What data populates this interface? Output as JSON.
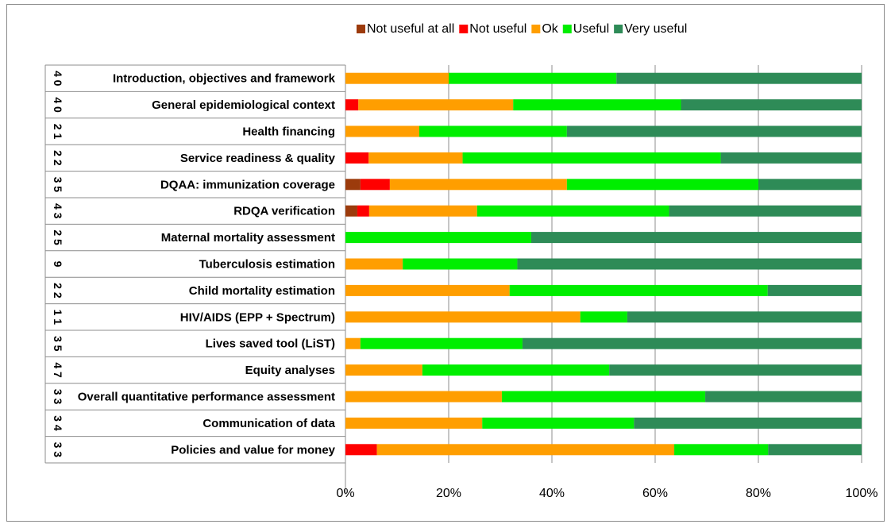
{
  "chart_data": {
    "type": "bar",
    "orientation": "horizontal",
    "stacked": true,
    "percent": true,
    "legend_position": "top",
    "grid": true,
    "xlim": [
      0,
      100
    ],
    "x_ticks": [
      "0%",
      "20%",
      "40%",
      "60%",
      "80%",
      "100%"
    ],
    "categories": [
      "Introduction, objectives and framework",
      "General epidemiological context",
      "Health financing",
      "Service readiness & quality",
      "DQAA: immunization coverage",
      "RDQA verification",
      "Maternal mortality assessment",
      "Tuberculosis estimation",
      "Child mortality estimation",
      "HIV/AIDS (EPP + Spectrum)",
      "Lives saved tool (LiST)",
      "Equity analyses",
      "Overall quantitative performance assessment",
      "Communication of data",
      "Policies and value for money"
    ],
    "counts": [
      "40",
      "40",
      "21",
      "22",
      "35",
      "43",
      "25",
      "9",
      "22",
      "11",
      "35",
      "47",
      "33",
      "34",
      "33"
    ],
    "series": [
      {
        "name": "Not useful at all",
        "color": "#9c3b0c",
        "values": [
          0,
          0,
          0,
          0,
          2.9,
          2.3,
          0,
          0,
          0,
          0,
          0,
          0,
          0,
          0,
          0
        ]
      },
      {
        "name": "Not useful",
        "color": "#ff0000",
        "values": [
          0,
          2.5,
          0,
          4.5,
          5.7,
          2.3,
          0,
          0,
          0,
          0,
          0,
          0,
          0,
          0,
          6.1
        ]
      },
      {
        "name": "Ok",
        "color": "#ff9e00",
        "values": [
          20.0,
          30.0,
          14.3,
          18.2,
          34.3,
          20.9,
          0,
          11.1,
          31.8,
          45.5,
          2.9,
          14.9,
          30.3,
          26.5,
          57.6
        ]
      },
      {
        "name": "Useful",
        "color": "#00ee00",
        "values": [
          32.5,
          32.5,
          28.6,
          50.0,
          37.1,
          37.2,
          36.0,
          22.2,
          50.0,
          9.1,
          31.4,
          36.2,
          39.4,
          29.4,
          18.2
        ]
      },
      {
        "name": "Very useful",
        "color": "#2e8b57",
        "values": [
          47.5,
          35.0,
          57.1,
          27.3,
          20.0,
          37.2,
          64.0,
          66.7,
          18.2,
          45.4,
          65.7,
          48.9,
          30.3,
          44.1,
          18.1
        ]
      }
    ]
  }
}
